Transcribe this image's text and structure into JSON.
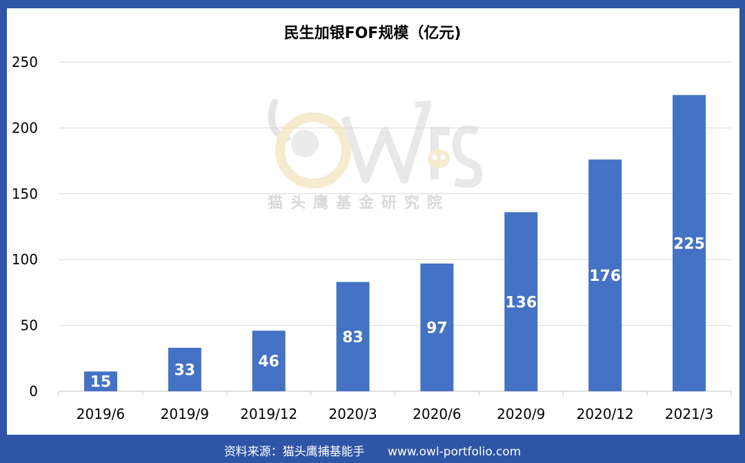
{
  "chart_data": {
    "type": "bar",
    "title": "民生加银FOF规模（亿元)",
    "categories": [
      "2019/6",
      "2019/9",
      "2019/12",
      "2020/3",
      "2020/6",
      "2020/9",
      "2020/12",
      "2021/3"
    ],
    "values": [
      15,
      33,
      46,
      83,
      97,
      136,
      176,
      225
    ],
    "data_labels": [
      "15",
      "33",
      "46",
      "83",
      "97",
      "136",
      "176",
      "225"
    ],
    "ylim": [
      0,
      250
    ],
    "yticks": [
      0,
      50,
      100,
      150,
      200,
      250
    ],
    "ytick_labels": [
      "0",
      "50",
      "100",
      "150",
      "200",
      "250"
    ],
    "grid": true,
    "legend": "none",
    "bar_color": "#4472c4"
  },
  "watermark": {
    "logo": "OWLS",
    "text": "猫头鹰基金研究院"
  },
  "footer": {
    "source": "资料来源：猫头鹰捕基能手",
    "url": "www.owl-portfolio.com"
  },
  "colors": {
    "frame": "#2e55a6",
    "bar": "#4472c4",
    "grid": "#d9d9d9"
  }
}
